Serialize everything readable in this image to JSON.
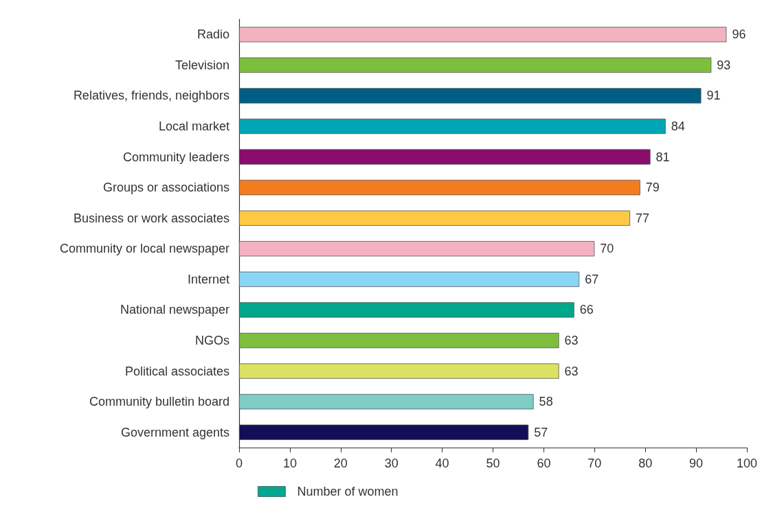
{
  "chart_data": {
    "type": "bar",
    "orientation": "horizontal",
    "categories": [
      "Radio",
      "Television",
      "Relatives, friends, neighbors",
      "Local market",
      "Community leaders",
      "Groups or associations",
      "Business or work associates",
      "Community or local newspaper",
      "Internet",
      "National newspaper",
      "NGOs",
      "Political associates",
      "Community bulletin board",
      "Government agents"
    ],
    "series": [
      {
        "name": "Number of women",
        "color": "#00a78e",
        "values": [
          96,
          93,
          91,
          84,
          81,
          79,
          77,
          70,
          67,
          66,
          63,
          63,
          58,
          57
        ],
        "colors": [
          "#f4b1c0",
          "#7dbe3f",
          "#005e85",
          "#00a6b5",
          "#8a0c6d",
          "#f47c20",
          "#fec744",
          "#f4b1c0",
          "#8bd5f4",
          "#00a78a",
          "#7dbe3f",
          "#dbe263",
          "#7fcdc5",
          "#130e56"
        ]
      }
    ],
    "xlim": [
      0,
      100
    ],
    "xticks": [
      0,
      10,
      20,
      30,
      40,
      50,
      60,
      70,
      80,
      90,
      100
    ],
    "data_labels": true,
    "legend": "bottom",
    "grid": false
  }
}
